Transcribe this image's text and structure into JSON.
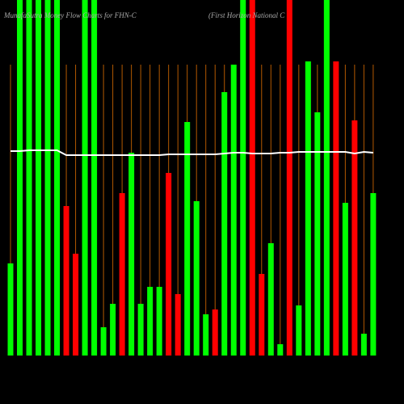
{
  "chart_data": {
    "type": "bar",
    "title": "MunafaSutra Money Flow Charts for FHN-C",
    "subtitle": "(First Horizon National C",
    "values": [
      114,
      440,
      440,
      440,
      440,
      440,
      185,
      126,
      440,
      440,
      35,
      64,
      201,
      251,
      64,
      85,
      85,
      226,
      76,
      289,
      191,
      51,
      57,
      326,
      360,
      440,
      440,
      101,
      139,
      14,
      440,
      62,
      364,
      301,
      440,
      364,
      189,
      291,
      27,
      201
    ],
    "colors": [
      "#00ff00",
      "#00ff00",
      "#00ff00",
      "#00ff00",
      "#00ff00",
      "#00ff00",
      "#ff0000",
      "#ff0000",
      "#00ff00",
      "#00ff00",
      "#00ff00",
      "#00ff00",
      "#ff0000",
      "#00ff00",
      "#00ff00",
      "#00ff00",
      "#00ff00",
      "#ff0000",
      "#ff0000",
      "#00ff00",
      "#00ff00",
      "#00ff00",
      "#ff0000",
      "#00ff00",
      "#00ff00",
      "#00ff00",
      "#ff0000",
      "#ff0000",
      "#00ff00",
      "#00ff00",
      "#ff0000",
      "#00ff00",
      "#00ff00",
      "#00ff00",
      "#00ff00",
      "#ff0000",
      "#00ff00",
      "#ff0000",
      "#00ff00",
      "#00ff00"
    ],
    "line": {
      "color": "#ffffff",
      "values": [
        253,
        253,
        254,
        254,
        254,
        254,
        248,
        248,
        248,
        248,
        248,
        248,
        248,
        248,
        248,
        248,
        248,
        249,
        249,
        249,
        249,
        249,
        249,
        250,
        251,
        251,
        250,
        250,
        250,
        251,
        251,
        252,
        252,
        252,
        252,
        252,
        252,
        250,
        252,
        251
      ]
    },
    "ylim": [
      0,
      440
    ],
    "category_line_color": "#b35900"
  }
}
